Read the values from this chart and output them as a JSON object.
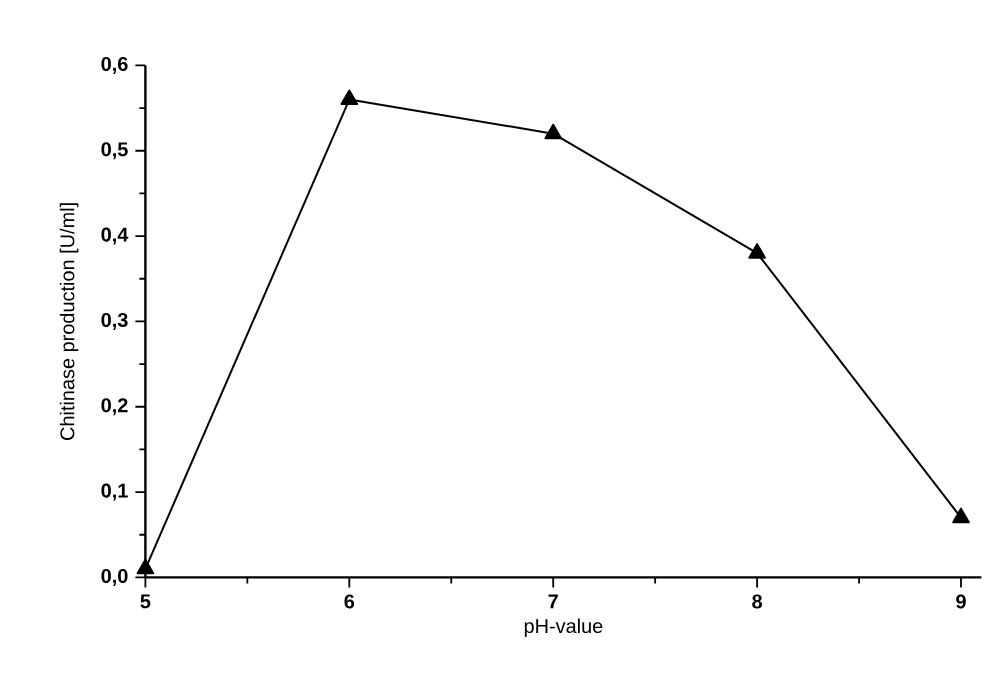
{
  "chart_data": {
    "type": "line",
    "xlabel": "pH-value",
    "ylabel": "Chitinase production [U/ml]",
    "x": [
      5,
      6,
      7,
      8,
      9
    ],
    "series": [
      {
        "color": "#000000",
        "values": [
          0.01,
          0.56,
          0.52,
          0.38,
          0.07
        ]
      }
    ],
    "xlim": [
      5,
      9.1
    ],
    "ylim": [
      0,
      0.6
    ],
    "xticks": [
      5,
      6,
      7,
      8,
      9
    ],
    "yticks": [
      {
        "value": 0,
        "label": "0,0"
      },
      {
        "value": 0.1,
        "label": "0,1"
      },
      {
        "value": 0.2,
        "label": "0,2"
      },
      {
        "value": 0.3,
        "label": "0,3"
      },
      {
        "value": 0.4,
        "label": "0,4"
      },
      {
        "value": 0.5,
        "label": "0,5"
      },
      {
        "value": 0.6,
        "label": "0,6"
      }
    ],
    "marker": "triangle",
    "line_style": "solid"
  }
}
